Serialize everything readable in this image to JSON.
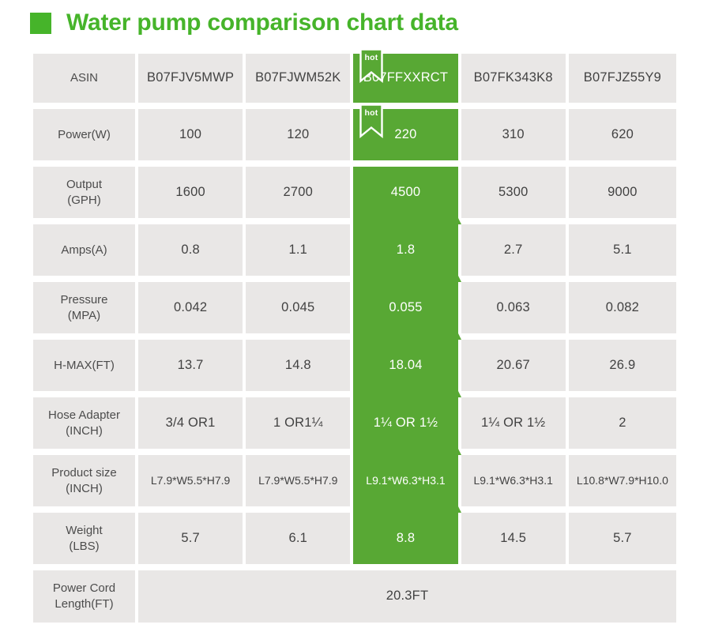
{
  "hot_badge_label": "hot",
  "colors": {
    "title_green": "#46b42a",
    "highlight_green": "#58a834",
    "cell_gray": "#e9e7e6",
    "label_text": "#4c4c4c",
    "value_text": "#424242"
  },
  "chart_data": {
    "type": "table",
    "title": "Water pump comparison chart data",
    "products": [
      "B07FJV5MWP",
      "B07FJWM52K",
      "B07FFXXRCT",
      "B07FK343K8",
      "B07FJZ55Y9"
    ],
    "highlighted_product": "B07FFXXRCT",
    "highlight_column_index": 2,
    "rows": [
      {
        "key": "asin",
        "label": [
          "ASIN"
        ],
        "values": [
          "B07FJV5MWP",
          "B07FJWM52K",
          "B07FFXXRCT",
          "B07FK343K8",
          "B07FJZ55Y9"
        ],
        "hot_badge": true
      },
      {
        "key": "power-w",
        "label": [
          "Power(W)"
        ],
        "values": [
          "100",
          "120",
          "220",
          "310",
          "620"
        ],
        "hot_badge": true
      },
      {
        "key": "output-gph",
        "label": [
          "Output",
          "(GPH)"
        ],
        "values": [
          "1600",
          "2700",
          "4500",
          "5300",
          "9000"
        ]
      },
      {
        "key": "amps-a",
        "label": [
          "Amps(A)"
        ],
        "values": [
          "0.8",
          "1.1",
          "1.8",
          "2.7",
          "5.1"
        ]
      },
      {
        "key": "pressure-mpa",
        "label": [
          "Pressure",
          "(MPA)"
        ],
        "values": [
          "0.042",
          "0.045",
          "0.055",
          "0.063",
          "0.082"
        ]
      },
      {
        "key": "h-max-ft",
        "label": [
          "H-MAX(FT)"
        ],
        "values": [
          "13.7",
          "14.8",
          "18.04",
          "20.67",
          "26.9"
        ]
      },
      {
        "key": "hose-adapter-inch",
        "label": [
          "Hose Adapter",
          "(INCH)"
        ],
        "values": [
          "3/4 OR1",
          "1 OR1¼",
          "1¼ OR 1½",
          "1¼ OR 1½",
          "2"
        ]
      },
      {
        "key": "product-size-inch",
        "label": [
          "Product size",
          "(INCH)"
        ],
        "values": [
          "L7.9*W5.5*H7.9",
          "L7.9*W5.5*H7.9",
          "L9.1*W6.3*H3.1",
          "L9.1*W6.3*H3.1",
          "L10.8*W7.9*H10.0"
        ]
      },
      {
        "key": "weight-lbs",
        "label": [
          "Weight",
          "(LBS)"
        ],
        "values": [
          "5.7",
          "6.1",
          "8.8",
          "14.5",
          "5.7"
        ]
      },
      {
        "key": "power-cord-length-ft",
        "label": [
          "Power Cord",
          "Length(FT)"
        ],
        "merged_value": "20.3FT"
      }
    ]
  }
}
